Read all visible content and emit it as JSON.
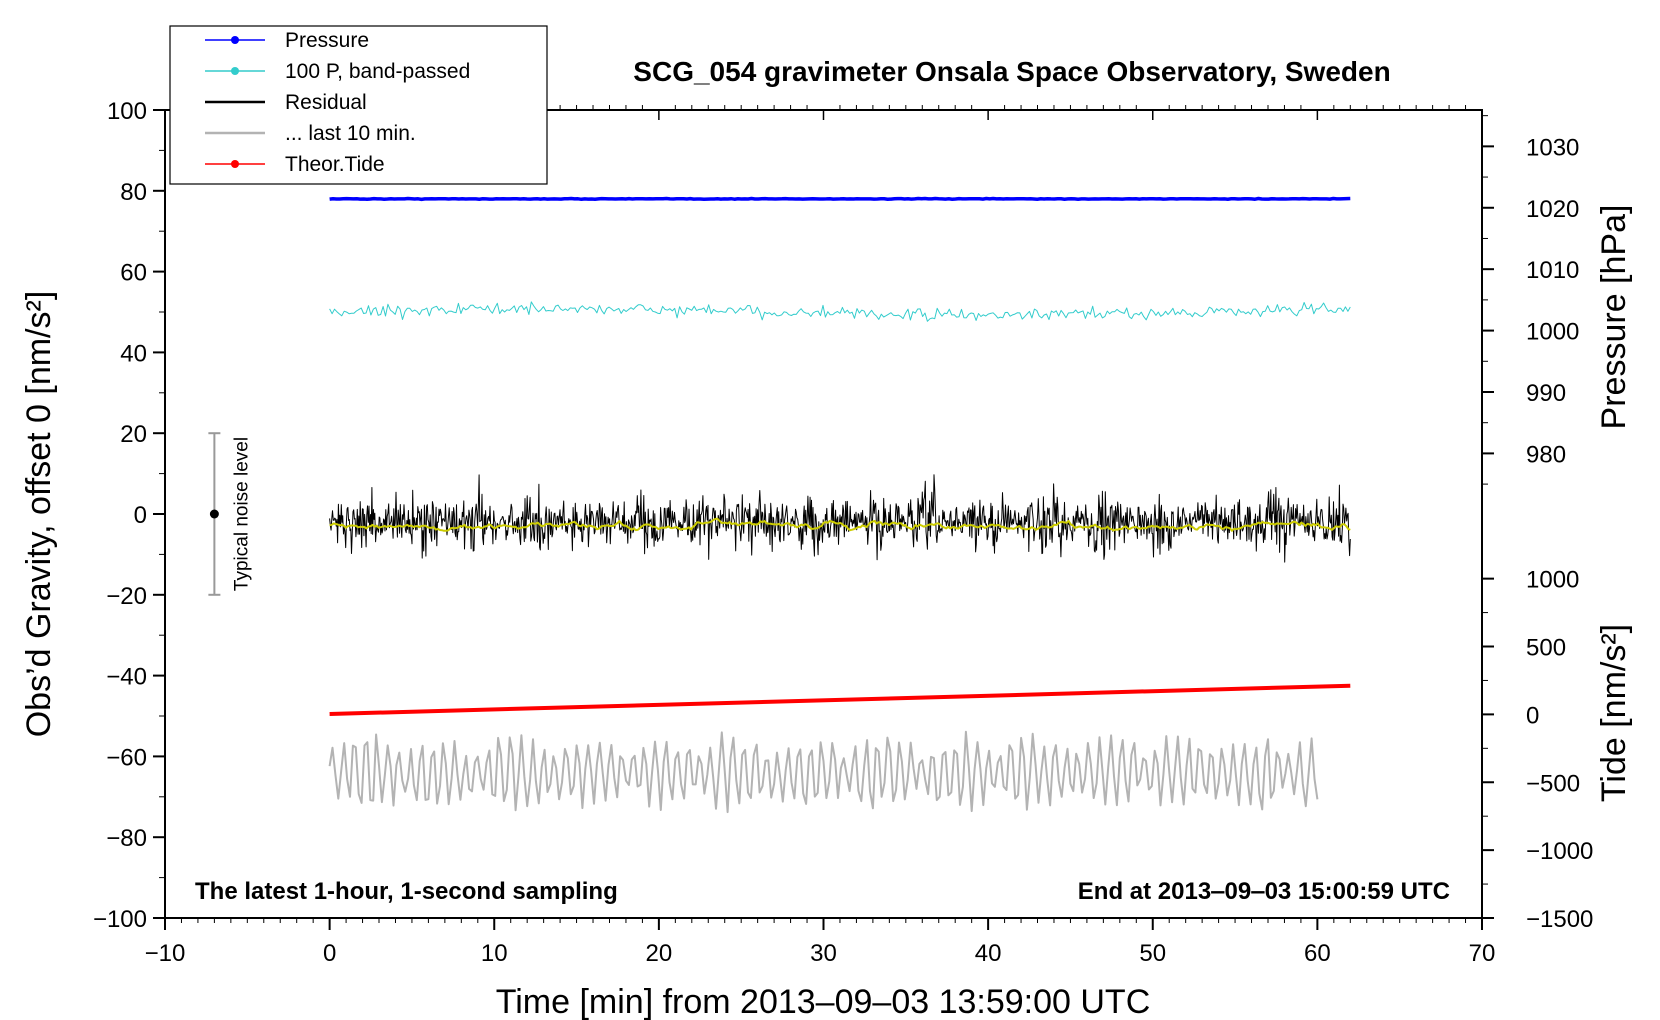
{
  "chart_data": {
    "type": "line",
    "title": "SCG_054 gravimeter Onsala Space Observatory, Sweden",
    "xlabel": "Time [min] from 2013‒09‒03 13:59:00 UTC",
    "ylabel_left": "Obs’d Gravity, offset 0 [nm/s²]",
    "ylabel_pressure": "Pressure [hPa]",
    "ylabel_tide": "Tide [nm/s²]",
    "note_left": "The latest 1‑hour, 1‑second sampling",
    "note_right": "End at 2013‒09‒03 15:00:59 UTC",
    "noise_label": "Typical noise level",
    "noise_bar": {
      "x": -7,
      "center": 0,
      "low": -20,
      "high": 20
    },
    "xlim": [
      -10,
      70
    ],
    "ylim": [
      -100,
      100
    ],
    "x_ticks": [
      -10,
      0,
      10,
      20,
      30,
      40,
      50,
      60,
      70
    ],
    "x_tick_labels": [
      "−10",
      "0",
      "10",
      "20",
      "30",
      "40",
      "50",
      "60",
      "70"
    ],
    "y_ticks": [
      -100,
      -80,
      -60,
      -40,
      -20,
      0,
      20,
      40,
      60,
      80,
      100
    ],
    "y_tick_labels": [
      "−100",
      "−80",
      "−60",
      "−40",
      "−20",
      "0",
      "20",
      "40",
      "60",
      "80",
      "100"
    ],
    "pressure_ticks": [
      980,
      990,
      1000,
      1010,
      1020,
      1030
    ],
    "pressure_tick_labels": [
      "980",
      "990",
      "1000",
      "1010",
      "1020",
      "1030"
    ],
    "pressure_axis_map": {
      "value_a": 980,
      "gravity_a": 15,
      "value_b": 1030,
      "gravity_b": 91
    },
    "tide_ticks": [
      -1500,
      -1000,
      -500,
      0,
      500,
      1000
    ],
    "tide_tick_labels": [
      "−1500",
      "−1000",
      "−500",
      "0",
      "500",
      "1000"
    ],
    "tide_axis_map": {
      "value_a": -1500,
      "gravity_a": -100,
      "value_b": 1000,
      "gravity_b": -16
    },
    "legend": {
      "position": "top-left",
      "entries": [
        {
          "label": "Pressure",
          "color": "#0000ff",
          "marker": true
        },
        {
          "label": "100 P, band‑passed",
          "color": "#33cccc",
          "marker": true
        },
        {
          "label": "Residual",
          "color": "#000000",
          "marker": false
        },
        {
          "label": "... last 10 min.",
          "color": "#b3b3b3",
          "marker": false
        },
        {
          "label": "Theor.Tide",
          "color": "#ff0000",
          "marker": true
        }
      ]
    },
    "series": [
      {
        "name": "Pressure",
        "color": "#0000ff",
        "x_range": [
          0,
          62
        ],
        "level": 78,
        "noise_amplitude": 0.3
      },
      {
        "name": "100 P, band-passed",
        "color": "#33cccc",
        "x_range": [
          0,
          62
        ],
        "level": 50,
        "noise_amplitude": 1.5
      },
      {
        "name": "Residual",
        "color": "#000000",
        "x_range": [
          0,
          62
        ],
        "level": -2,
        "noise_amplitude": 6,
        "min": -22,
        "max": 17
      },
      {
        "name": "Residual (smoothed)",
        "color": "#cccc00",
        "x_range": [
          0,
          62
        ],
        "level": -3,
        "noise_amplitude": 1
      },
      {
        "name": "... last 10 min.",
        "color": "#b3b3b3",
        "x_range": [
          0,
          60
        ],
        "level": -64,
        "noise_amplitude": 8,
        "min": -81,
        "max": -46
      },
      {
        "name": "Theor.Tide",
        "color": "#ff0000",
        "x": [
          0,
          62
        ],
        "y": [
          -49.5,
          -42.5
        ]
      }
    ]
  }
}
